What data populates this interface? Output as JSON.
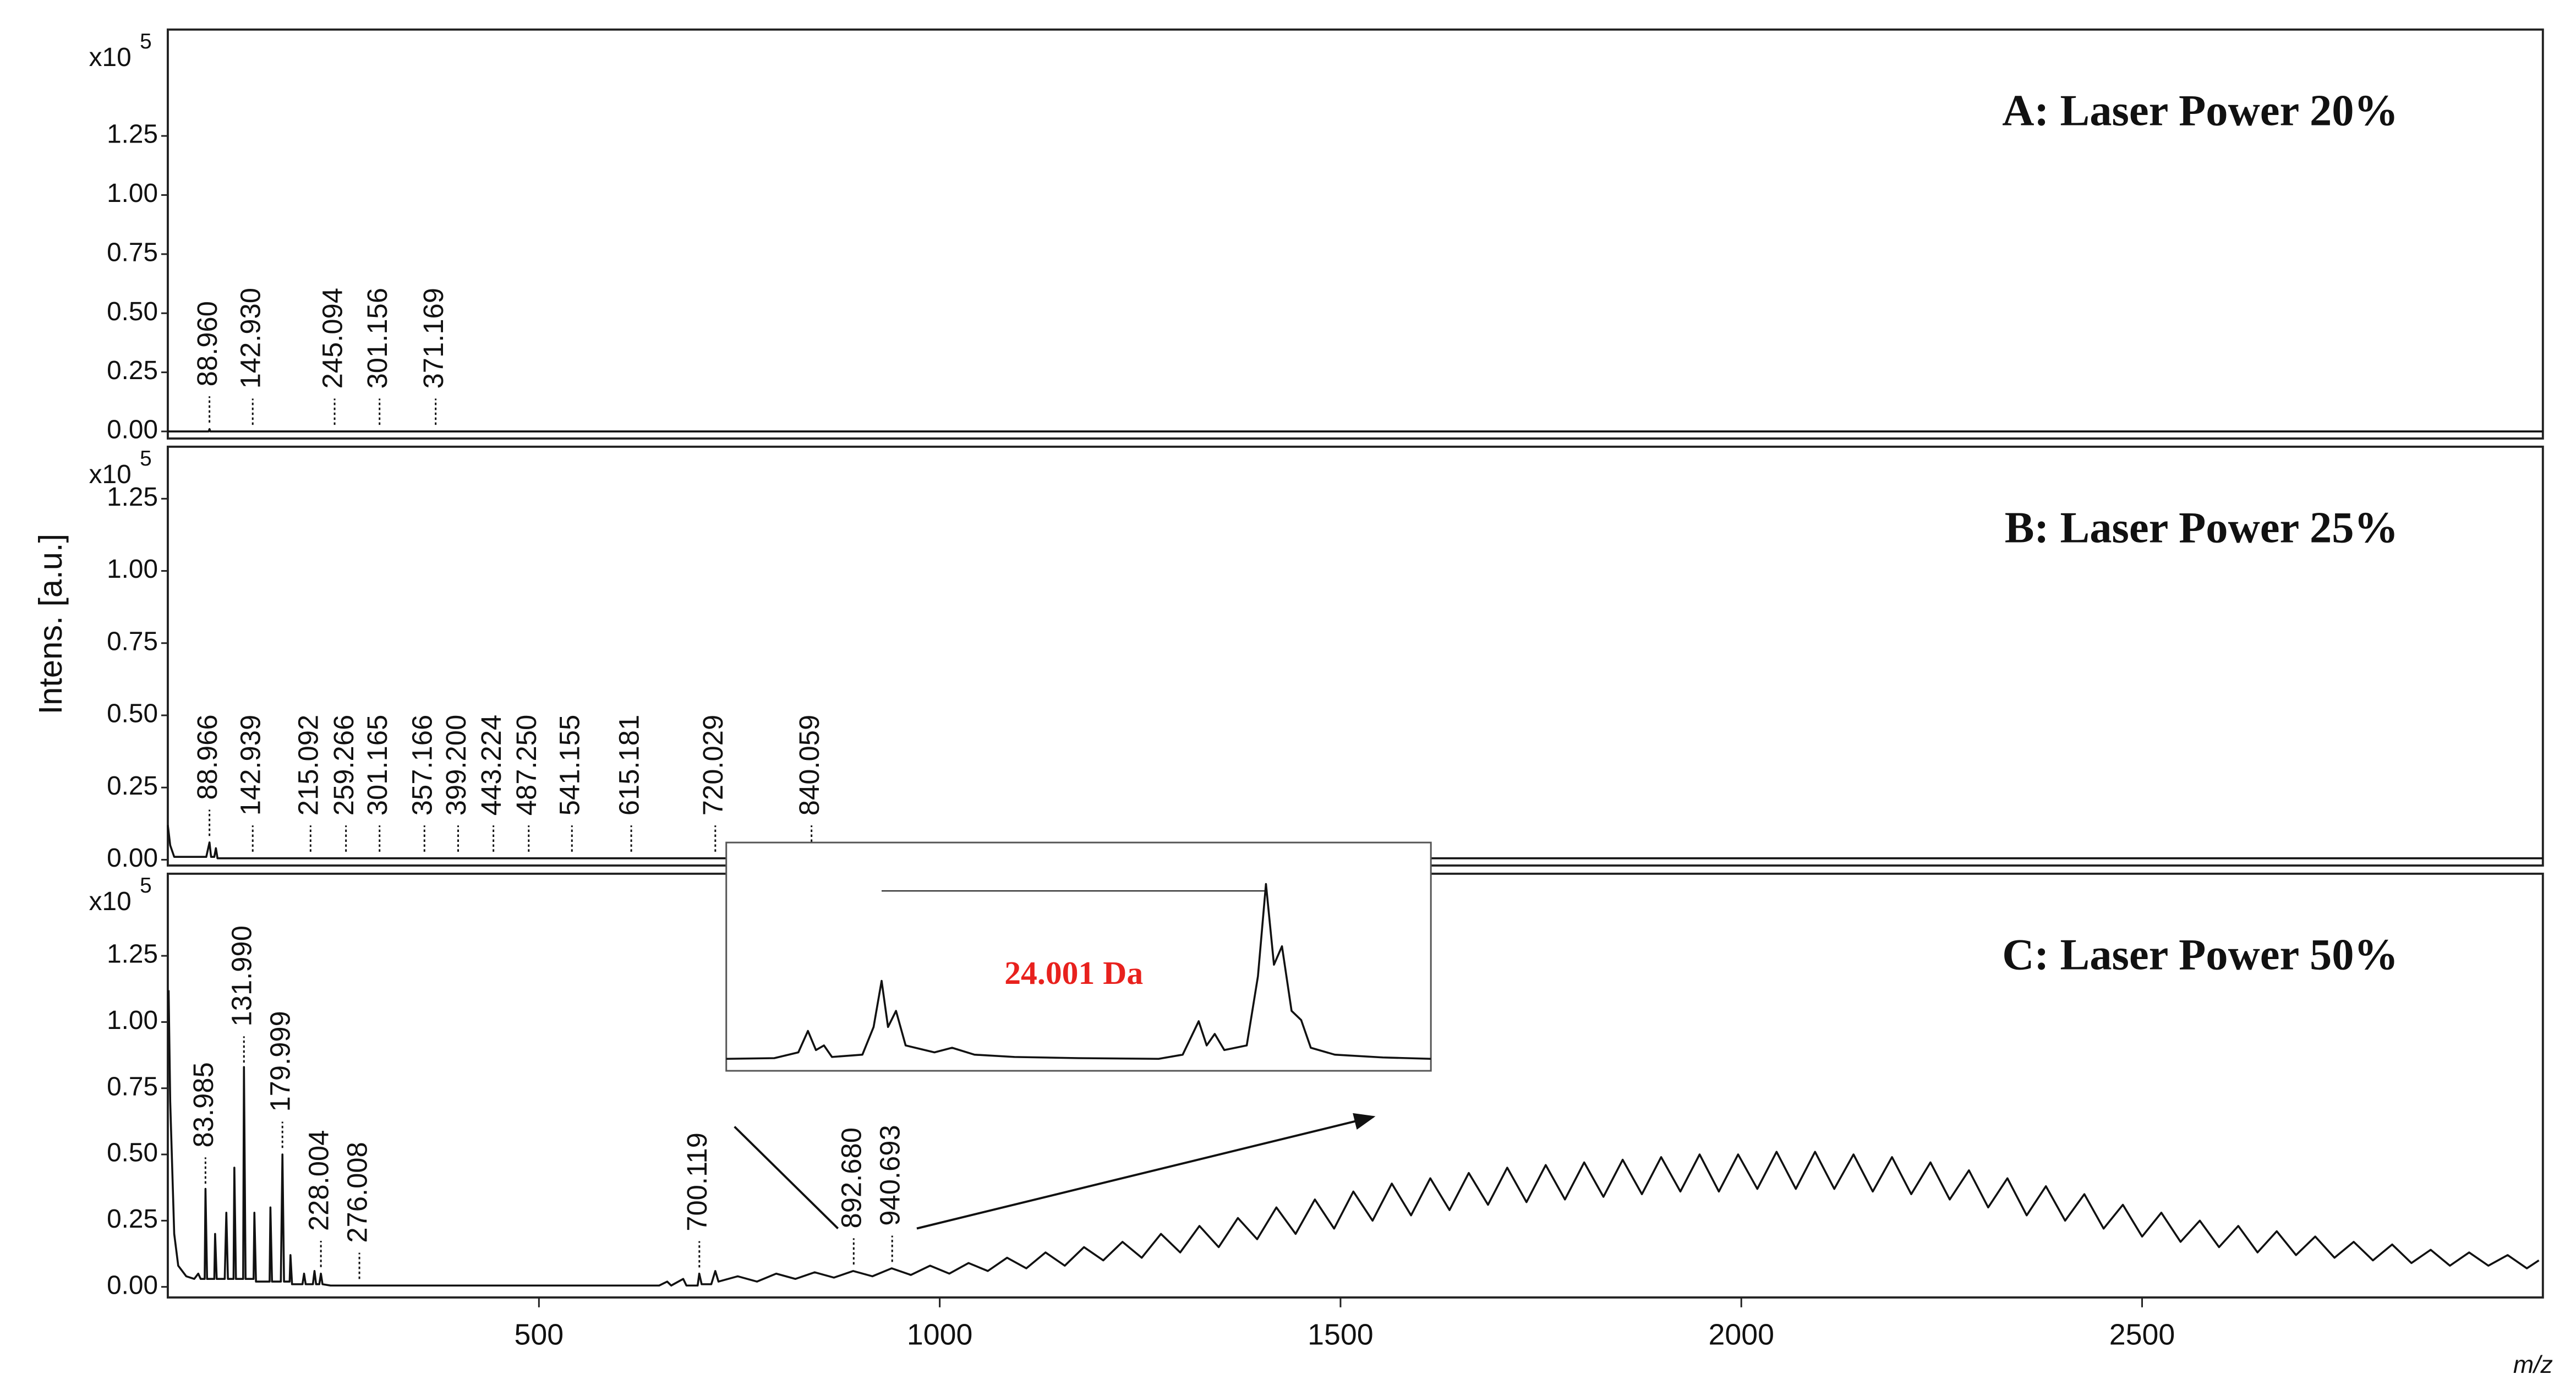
{
  "chart_data": [
    {
      "type": "line",
      "title": "A: Laser Power 20%",
      "y_multiplier": "x10",
      "y_multiplier_exp": "5",
      "xlim": [
        37,
        3000
      ],
      "ylim": [
        -0.03,
        1.7
      ],
      "yticks": [
        {
          "value": 0,
          "label": "0.00"
        },
        {
          "value": 0.25,
          "label": "0.25"
        },
        {
          "value": 0.5,
          "label": "0.50"
        },
        {
          "value": 0.75,
          "label": "0.75"
        },
        {
          "value": 1,
          "label": "1.00"
        },
        {
          "value": 1.25,
          "label": "1.25"
        }
      ],
      "x": [
        37,
        88,
        89,
        90,
        3000
      ],
      "values": [
        0,
        0,
        0.01,
        0,
        0
      ],
      "color": "#111111",
      "peaks": [
        88.96,
        142.93,
        245.094,
        301.156,
        371.169
      ],
      "peak_labels": [
        "88.960",
        "142.930",
        "245.094",
        "301.156",
        "371.169"
      ]
    },
    {
      "type": "line",
      "title": "B: Laser Power 25%",
      "y_multiplier": "x10",
      "y_multiplier_exp": "5",
      "ylabel": "Intens. [a.u.]",
      "xlim": [
        37,
        3000
      ],
      "ylim": [
        -0.02,
        1.43
      ],
      "yticks": [
        {
          "value": 0,
          "label": "0.00"
        },
        {
          "value": 0.25,
          "label": "0.25"
        },
        {
          "value": 0.5,
          "label": "0.50"
        },
        {
          "value": 0.75,
          "label": "0.75"
        },
        {
          "value": 1,
          "label": "1.00"
        },
        {
          "value": 1.25,
          "label": "1.25"
        }
      ],
      "x": [
        37,
        40,
        45,
        85,
        89,
        91,
        95,
        97,
        99,
        1600,
        3000
      ],
      "values": [
        0.12,
        0.05,
        0.01,
        0.01,
        0.06,
        0.01,
        0.01,
        0.04,
        0.005,
        0.005,
        0.005
      ],
      "color": "#111111",
      "peaks": [
        88.966,
        142.939,
        215.092,
        259.266,
        301.165,
        357.166,
        399.2,
        443.224,
        487.25,
        541.155,
        615.181,
        720.029,
        840.059
      ],
      "peak_labels": [
        "88.966",
        "142.939",
        "215.092",
        "259.266",
        "301.165",
        "357.166",
        "399.200",
        "443.224",
        "487.250",
        "541.155",
        "615.181",
        "720.029",
        "840.059"
      ]
    },
    {
      "type": "line",
      "title": "C: Laser Power 50%",
      "y_multiplier": "x10",
      "y_multiplier_exp": "5",
      "xlabel": "m/z",
      "xlim": [
        37,
        3000
      ],
      "ylim": [
        -0.04,
        1.56
      ],
      "xticks": [
        500,
        1000,
        1500,
        2000,
        2500
      ],
      "yticks": [
        {
          "value": 0,
          "label": "0.00"
        },
        {
          "value": 0.25,
          "label": "0.25"
        },
        {
          "value": 0.5,
          "label": "0.50"
        },
        {
          "value": 0.75,
          "label": "0.75"
        },
        {
          "value": 1,
          "label": "1.00"
        },
        {
          "value": 1.25,
          "label": "1.25"
        }
      ],
      "x": [
        38,
        40,
        45,
        50,
        60,
        70,
        75,
        78,
        83,
        84,
        86,
        95,
        96,
        98,
        108,
        110,
        112,
        119,
        120,
        122,
        131,
        132,
        134,
        144,
        145,
        147,
        164,
        165,
        167,
        178,
        180,
        182,
        189,
        190,
        192,
        205,
        207,
        209,
        218,
        220,
        222,
        226,
        228,
        230,
        240,
        650,
        660,
        665,
        680,
        684,
        698,
        700,
        703,
        715,
        720,
        724,
        748,
        772,
        796,
        820,
        844,
        868,
        892,
        916,
        940,
        964,
        988,
        1012,
        1036,
        1060,
        1084,
        1108,
        1132,
        1156,
        1180,
        1204,
        1228,
        1252,
        1276,
        1300,
        1324,
        1348,
        1372,
        1396,
        1420,
        1444,
        1468,
        1492,
        1516,
        1540,
        1564,
        1588,
        1612,
        1636,
        1660,
        1684,
        1708,
        1732,
        1756,
        1780,
        1804,
        1828,
        1852,
        1876,
        1900,
        1924,
        1948,
        1972,
        1996,
        2020,
        2044,
        2068,
        2092,
        2116,
        2140,
        2164,
        2188,
        2212,
        2236,
        2260,
        2284,
        2308,
        2332,
        2356,
        2380,
        2404,
        2428,
        2452,
        2476,
        2500,
        2524,
        2548,
        2572,
        2596,
        2620,
        2644,
        2668,
        2692,
        2716,
        2740,
        2764,
        2788,
        2812,
        2836,
        2860,
        2884,
        2908,
        2932,
        2956,
        2980,
        2995
      ],
      "values": [
        1.12,
        0.7,
        0.2,
        0.08,
        0.04,
        0.03,
        0.05,
        0.03,
        0.03,
        0.37,
        0.03,
        0.03,
        0.2,
        0.03,
        0.03,
        0.28,
        0.03,
        0.03,
        0.45,
        0.03,
        0.03,
        0.83,
        0.03,
        0.03,
        0.28,
        0.02,
        0.02,
        0.3,
        0.02,
        0.02,
        0.5,
        0.02,
        0.02,
        0.12,
        0.01,
        0.01,
        0.05,
        0.01,
        0.01,
        0.06,
        0.01,
        0.01,
        0.05,
        0.01,
        0.005,
        0.005,
        0.02,
        0.005,
        0.03,
        0.005,
        0.005,
        0.05,
        0.01,
        0.01,
        0.06,
        0.02,
        0.04,
        0.02,
        0.05,
        0.03,
        0.055,
        0.035,
        0.06,
        0.04,
        0.07,
        0.045,
        0.08,
        0.05,
        0.09,
        0.06,
        0.11,
        0.07,
        0.13,
        0.08,
        0.15,
        0.1,
        0.17,
        0.11,
        0.2,
        0.13,
        0.23,
        0.15,
        0.26,
        0.18,
        0.3,
        0.2,
        0.33,
        0.22,
        0.36,
        0.25,
        0.39,
        0.27,
        0.41,
        0.29,
        0.43,
        0.31,
        0.45,
        0.32,
        0.46,
        0.33,
        0.47,
        0.34,
        0.48,
        0.35,
        0.49,
        0.36,
        0.5,
        0.36,
        0.5,
        0.37,
        0.51,
        0.37,
        0.51,
        0.37,
        0.5,
        0.36,
        0.49,
        0.35,
        0.47,
        0.33,
        0.44,
        0.3,
        0.41,
        0.27,
        0.38,
        0.25,
        0.35,
        0.22,
        0.31,
        0.19,
        0.28,
        0.17,
        0.25,
        0.15,
        0.23,
        0.13,
        0.21,
        0.12,
        0.19,
        0.11,
        0.17,
        0.1,
        0.16,
        0.09,
        0.14,
        0.08,
        0.13,
        0.08,
        0.12,
        0.07,
        0.1
      ],
      "color": "#111111",
      "peaks": [
        83.985,
        131.99,
        179.999,
        228.004,
        276.008,
        700.119,
        892.68,
        940.693
      ],
      "peak_labels": [
        "83.985",
        "131.990",
        "179.999",
        "228.004",
        "276.008",
        "700.119",
        "892.680",
        "940.693"
      ]
    },
    {
      "type": "line",
      "xlim": [
        883,
        927
      ],
      "ylim": [
        -100,
        9300
      ],
      "color": "#111111",
      "x": [
        883,
        886,
        887.5,
        888.1,
        888.6,
        889.1,
        889.6,
        891.5,
        892.2,
        892.7,
        893.1,
        893.6,
        894.2,
        896,
        897.1,
        898.5,
        901,
        905,
        910,
        911.5,
        912.5,
        913,
        913.5,
        914.1,
        915.5,
        916.2,
        916.7,
        917.2,
        917.7,
        918.3,
        918.9,
        919.5,
        921,
        924,
        927
      ],
      "values": [
        420,
        450,
        700,
        1630,
        800,
        1000,
        500,
        600,
        1800,
        3800,
        1800,
        2500,
        1000,
        700,
        900,
        600,
        500,
        450,
        420,
        600,
        2050,
        1000,
        1500,
        800,
        1000,
        4000,
        8000,
        4500,
        5300,
        2500,
        2100,
        900,
        600,
        480,
        420
      ],
      "annotation": {
        "text": "24.001 Da",
        "x": [
          892.7,
          916.7
        ],
        "y": 7700,
        "color": "#e8211d"
      }
    }
  ]
}
